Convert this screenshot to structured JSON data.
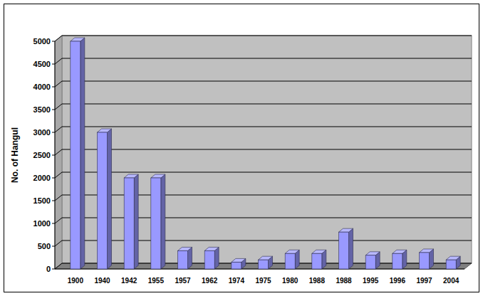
{
  "chart_data": {
    "type": "bar",
    "y_label": "No. of Hangul",
    "categories": [
      "1900",
      "1940",
      "1942",
      "1955",
      "1957",
      "1962",
      "1974",
      "1975",
      "1980",
      "1988",
      "1988",
      "1995",
      "1996",
      "1997",
      "2004"
    ],
    "values": [
      5000,
      3000,
      2000,
      2000,
      400,
      400,
      150,
      200,
      340,
      340,
      810,
      300,
      340,
      360,
      200
    ],
    "color": "#9999ff",
    "ylim": [
      0,
      5000
    ],
    "yticks": [
      0,
      500,
      1000,
      1500,
      2000,
      2500,
      3000,
      3500,
      4000,
      4500,
      5000
    ],
    "grid": true
  }
}
